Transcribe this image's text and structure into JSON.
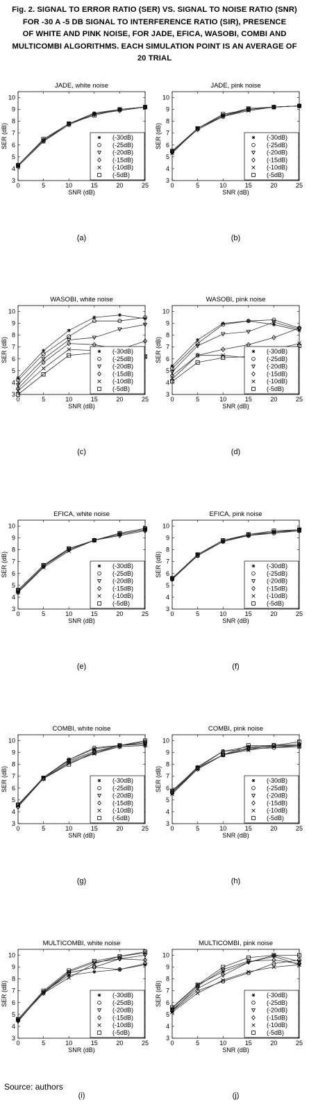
{
  "caption": {
    "lines": [
      "Fig. 2. SIGNAL TO ERROR RATIO (SER) VS.  SIGNAL TO NOISE RATIO (SNR)",
      "FOR -30 A -5 DB SIGNAL TO INTERFERENCE RATIO (SIR), PRESENCE",
      "OF WHITE AND PINK NOISE, FOR JADE, EFICA, WASOBI, COMBI AND",
      "MULTICOMBI ALGORITHMS. EACH SIMULATION POINT IS AN AVERAGE OF",
      "20 TRIAL"
    ]
  },
  "source": "Source: authors",
  "chart_data": [
    {
      "type": "line",
      "letter": "(a)",
      "title": "JADE, white noise",
      "xlabel": "SNR (dB)",
      "ylabel": "SER (dB)",
      "x": [
        0,
        5,
        10,
        15,
        20,
        25
      ],
      "xlim": [
        0,
        25
      ],
      "ylim": [
        3,
        10.5
      ],
      "xticks": [
        "0",
        "5",
        "10",
        "15",
        "20",
        "25"
      ],
      "yticks": [
        "3",
        "4",
        "5",
        "6",
        "7",
        "8",
        "9",
        "10"
      ],
      "series": [
        {
          "name": "(-30dB)",
          "marker": "star",
          "values": [
            4.3,
            6.4,
            7.8,
            8.7,
            9.0,
            9.2
          ]
        },
        {
          "name": "(-25dB)",
          "marker": "circle",
          "values": [
            4.2,
            6.3,
            7.7,
            8.6,
            9.0,
            9.2
          ]
        },
        {
          "name": "(-20dB)",
          "marker": "triangle",
          "values": [
            4.3,
            6.4,
            7.8,
            8.6,
            9.0,
            9.2
          ]
        },
        {
          "name": "(-15dB)",
          "marker": "diamond",
          "values": [
            4.3,
            6.4,
            7.8,
            8.6,
            8.9,
            9.2
          ]
        },
        {
          "name": "(-10dB)",
          "marker": "x",
          "values": [
            4.2,
            6.3,
            7.8,
            8.6,
            9.0,
            9.2
          ]
        },
        {
          "name": "(-5dB)",
          "marker": "square",
          "values": [
            4.3,
            6.5,
            7.8,
            8.5,
            9.0,
            9.2
          ]
        }
      ],
      "grid": false,
      "legend": "bottom-right"
    },
    {
      "type": "line",
      "letter": "(b)",
      "title": "JADE,  pink noise",
      "xlabel": "SNR (dB)",
      "ylabel": "SER (dB)",
      "x": [
        0,
        5,
        10,
        15,
        20,
        25
      ],
      "xlim": [
        0,
        25
      ],
      "ylim": [
        3,
        10.5
      ],
      "xticks": [
        "0",
        "5",
        "10",
        "15",
        "20",
        "25"
      ],
      "yticks": [
        "3",
        "4",
        "5",
        "6",
        "7",
        "8",
        "9",
        "10"
      ],
      "series": [
        {
          "name": "(-30dB)",
          "marker": "star",
          "values": [
            5.4,
            7.4,
            8.5,
            9.0,
            9.2,
            9.3
          ]
        },
        {
          "name": "(-25dB)",
          "marker": "circle",
          "values": [
            5.4,
            7.4,
            8.5,
            9.0,
            9.2,
            9.3
          ]
        },
        {
          "name": "(-20dB)",
          "marker": "triangle",
          "values": [
            5.5,
            7.4,
            8.5,
            9.1,
            9.2,
            9.3
          ]
        },
        {
          "name": "(-15dB)",
          "marker": "diamond",
          "values": [
            5.4,
            7.3,
            8.4,
            9.0,
            9.2,
            9.3
          ]
        },
        {
          "name": "(-10dB)",
          "marker": "x",
          "values": [
            5.3,
            7.4,
            8.4,
            8.9,
            9.2,
            9.3
          ]
        },
        {
          "name": "(-5dB)",
          "marker": "square",
          "values": [
            5.5,
            7.4,
            8.6,
            9.0,
            9.2,
            9.3
          ]
        }
      ],
      "grid": false,
      "legend": "bottom-right"
    },
    {
      "type": "line",
      "letter": "(c)",
      "title": "WASOBI, white noise",
      "xlabel": "SNR (dB)",
      "ylabel": "SER (dB)",
      "x": [
        0,
        5,
        10,
        15,
        20,
        25
      ],
      "xlim": [
        0,
        25
      ],
      "ylim": [
        3,
        10.5
      ],
      "xticks": [
        "0",
        "5",
        "10",
        "15",
        "20",
        "25"
      ],
      "yticks": [
        "3",
        "4",
        "5",
        "6",
        "7",
        "8",
        "9",
        "10"
      ],
      "series": [
        {
          "name": "(-30dB)",
          "marker": "star",
          "values": [
            4.4,
            6.7,
            8.4,
            9.5,
            9.7,
            9.4
          ]
        },
        {
          "name": "(-25dB)",
          "marker": "circle",
          "values": [
            4.2,
            6.4,
            7.9,
            9.2,
            9.2,
            9.5
          ]
        },
        {
          "name": "(-20dB)",
          "marker": "triangle",
          "values": [
            3.8,
            6.0,
            7.6,
            7.8,
            8.5,
            8.9
          ]
        },
        {
          "name": "(-15dB)",
          "marker": "diamond",
          "values": [
            3.5,
            5.7,
            7.3,
            7.2,
            6.8,
            7.5
          ]
        },
        {
          "name": "(-10dB)",
          "marker": "x",
          "values": [
            3.3,
            5.2,
            6.8,
            6.7,
            6.6,
            6.2
          ]
        },
        {
          "name": "(-5dB)",
          "marker": "square",
          "values": [
            3.0,
            4.7,
            6.3,
            6.5,
            6.3,
            6.2
          ]
        }
      ],
      "grid": false,
      "legend": "bottom-right"
    },
    {
      "type": "line",
      "letter": "(d)",
      "title": "WASOBI,  pink noise",
      "xlabel": "SNR (dB)",
      "ylabel": "SER (dB)",
      "x": [
        0,
        5,
        10,
        15,
        20,
        25
      ],
      "xlim": [
        0,
        25
      ],
      "ylim": [
        3,
        10.5
      ],
      "xticks": [
        "0",
        "5",
        "10",
        "15",
        "20",
        "25"
      ],
      "yticks": [
        "3",
        "4",
        "5",
        "6",
        "7",
        "8",
        "9",
        "10"
      ],
      "series": [
        {
          "name": "(-30dB)",
          "marker": "star",
          "values": [
            5.4,
            7.6,
            9.0,
            9.2,
            8.9,
            8.4
          ]
        },
        {
          "name": "(-25dB)",
          "marker": "circle",
          "values": [
            5.2,
            7.3,
            8.9,
            9.2,
            9.3,
            8.6
          ]
        },
        {
          "name": "(-20dB)",
          "marker": "triangle",
          "values": [
            4.9,
            7.1,
            8.1,
            8.3,
            9.1,
            8.5
          ]
        },
        {
          "name": "(-15dB)",
          "marker": "diamond",
          "values": [
            4.6,
            6.3,
            6.8,
            7.2,
            7.8,
            8.6
          ]
        },
        {
          "name": "(-10dB)",
          "marker": "x",
          "values": [
            4.3,
            6.3,
            6.3,
            6.1,
            6.8,
            7.3
          ]
        },
        {
          "name": "(-5dB)",
          "marker": "square",
          "values": [
            4.1,
            5.7,
            6.1,
            6.2,
            6.6,
            7.1
          ]
        }
      ],
      "grid": false,
      "legend": "bottom-right"
    },
    {
      "type": "line",
      "letter": "(e)",
      "title": "EFICA, white noise",
      "xlabel": "SNR (dB)",
      "ylabel": "SER (dB)",
      "x": [
        0,
        5,
        10,
        15,
        20,
        25
      ],
      "xlim": [
        0,
        25
      ],
      "ylim": [
        3,
        10.5
      ],
      "xticks": [
        "0",
        "5",
        "10",
        "15",
        "20",
        "25"
      ],
      "yticks": [
        "3",
        "4",
        "5",
        "6",
        "7",
        "8",
        "9",
        "10"
      ],
      "series": [
        {
          "name": "(-30dB)",
          "marker": "star",
          "values": [
            4.4,
            6.6,
            8.0,
            8.8,
            9.4,
            9.8
          ]
        },
        {
          "name": "(-25dB)",
          "marker": "circle",
          "values": [
            4.5,
            6.6,
            8.1,
            8.8,
            9.3,
            9.7
          ]
        },
        {
          "name": "(-20dB)",
          "marker": "triangle",
          "values": [
            4.6,
            6.7,
            8.1,
            8.8,
            9.3,
            9.7
          ]
        },
        {
          "name": "(-15dB)",
          "marker": "diamond",
          "values": [
            4.4,
            6.6,
            8.0,
            8.8,
            9.2,
            9.6
          ]
        },
        {
          "name": "(-10dB)",
          "marker": "x",
          "values": [
            4.4,
            6.5,
            7.9,
            8.8,
            9.3,
            9.7
          ]
        },
        {
          "name": "(-5dB)",
          "marker": "square",
          "values": [
            4.6,
            6.7,
            8.1,
            8.8,
            9.4,
            9.8
          ]
        }
      ],
      "grid": false,
      "legend": "bottom-right"
    },
    {
      "type": "line",
      "letter": "(f)",
      "title": "EFICA,  pink noise",
      "xlabel": "SNR (dB)",
      "ylabel": "SER (dB)",
      "x": [
        0,
        5,
        10,
        15,
        20,
        25
      ],
      "xlim": [
        0,
        25
      ],
      "ylim": [
        3,
        10.5
      ],
      "xticks": [
        "0",
        "5",
        "10",
        "15",
        "20",
        "25"
      ],
      "yticks": [
        "3",
        "4",
        "5",
        "6",
        "7",
        "8",
        "9",
        "10"
      ],
      "series": [
        {
          "name": "(-30dB)",
          "marker": "star",
          "values": [
            5.6,
            7.6,
            8.8,
            9.2,
            9.5,
            9.7
          ]
        },
        {
          "name": "(-25dB)",
          "marker": "circle",
          "values": [
            5.5,
            7.5,
            8.7,
            9.2,
            9.4,
            9.6
          ]
        },
        {
          "name": "(-20dB)",
          "marker": "triangle",
          "values": [
            5.5,
            7.6,
            8.7,
            9.3,
            9.5,
            9.7
          ]
        },
        {
          "name": "(-15dB)",
          "marker": "diamond",
          "values": [
            5.6,
            7.5,
            8.7,
            9.2,
            9.5,
            9.6
          ]
        },
        {
          "name": "(-10dB)",
          "marker": "x",
          "values": [
            5.6,
            7.5,
            8.7,
            9.2,
            9.5,
            9.6
          ]
        },
        {
          "name": "(-5dB)",
          "marker": "square",
          "values": [
            5.6,
            7.6,
            8.8,
            9.3,
            9.6,
            9.7
          ]
        }
      ],
      "grid": false,
      "legend": "bottom-right"
    },
    {
      "type": "line",
      "letter": "(g)",
      "title": "COMBI, white noise",
      "xlabel": "SNR (dB)",
      "ylabel": "SER (dB)",
      "x": [
        0,
        5,
        10,
        15,
        20,
        25
      ],
      "xlim": [
        0,
        25
      ],
      "ylim": [
        3,
        10.5
      ],
      "xticks": [
        "0",
        "5",
        "10",
        "15",
        "20",
        "25"
      ],
      "yticks": [
        "3",
        "4",
        "5",
        "6",
        "7",
        "8",
        "9",
        "10"
      ],
      "series": [
        {
          "name": "(-30dB)",
          "marker": "star",
          "values": [
            4.5,
            6.9,
            8.4,
            9.3,
            9.6,
            9.7
          ]
        },
        {
          "name": "(-25dB)",
          "marker": "circle",
          "values": [
            4.6,
            6.8,
            8.4,
            9.4,
            9.6,
            9.8
          ]
        },
        {
          "name": "(-20dB)",
          "marker": "triangle",
          "values": [
            4.6,
            6.9,
            8.3,
            9.1,
            9.6,
            9.9
          ]
        },
        {
          "name": "(-15dB)",
          "marker": "diamond",
          "values": [
            4.4,
            6.8,
            8.2,
            9.0,
            9.5,
            9.6
          ]
        },
        {
          "name": "(-10dB)",
          "marker": "x",
          "values": [
            4.5,
            6.8,
            8.1,
            8.9,
            9.5,
            9.6
          ]
        },
        {
          "name": "(-5dB)",
          "marker": "square",
          "values": [
            4.6,
            6.8,
            8.0,
            9.0,
            9.6,
            10.0
          ]
        }
      ],
      "grid": false,
      "legend": "bottom-right"
    },
    {
      "type": "line",
      "letter": "(h)",
      "title": "COMBI,  pink noise",
      "xlabel": "SNR (dB)",
      "ylabel": "SER (dB)",
      "x": [
        0,
        5,
        10,
        15,
        20,
        25
      ],
      "xlim": [
        0,
        25
      ],
      "ylim": [
        3,
        10.5
      ],
      "xticks": [
        "0",
        "5",
        "10",
        "15",
        "20",
        "25"
      ],
      "yticks": [
        "3",
        "4",
        "5",
        "6",
        "7",
        "8",
        "9",
        "10"
      ],
      "series": [
        {
          "name": "(-30dB)",
          "marker": "star",
          "values": [
            5.7,
            7.8,
            9.1,
            9.5,
            9.5,
            9.6
          ]
        },
        {
          "name": "(-25dB)",
          "marker": "circle",
          "values": [
            5.6,
            7.7,
            9.1,
            9.3,
            9.4,
            9.5
          ]
        },
        {
          "name": "(-20dB)",
          "marker": "triangle",
          "values": [
            5.8,
            7.7,
            8.8,
            9.4,
            9.6,
            9.6
          ]
        },
        {
          "name": "(-15dB)",
          "marker": "diamond",
          "values": [
            5.6,
            7.6,
            8.8,
            9.3,
            9.6,
            9.7
          ]
        },
        {
          "name": "(-10dB)",
          "marker": "x",
          "values": [
            5.5,
            7.6,
            8.8,
            9.2,
            9.5,
            9.5
          ]
        },
        {
          "name": "(-5dB)",
          "marker": "square",
          "values": [
            5.7,
            7.7,
            8.8,
            9.6,
            9.6,
            9.9
          ]
        }
      ],
      "grid": false,
      "legend": "bottom-right"
    },
    {
      "type": "line",
      "letter": "(i)",
      "title": "MULTICOMBI, white noise",
      "xlabel": "SNR (dB)",
      "ylabel": "SER (dB)",
      "x": [
        0,
        5,
        10,
        15,
        20,
        25
      ],
      "xlim": [
        0,
        25
      ],
      "ylim": [
        3,
        10.5
      ],
      "xticks": [
        "0",
        "5",
        "10",
        "15",
        "20",
        "25"
      ],
      "yticks": [
        "3",
        "4",
        "5",
        "6",
        "7",
        "8",
        "9",
        "10"
      ],
      "series": [
        {
          "name": "(-30dB)",
          "marker": "star",
          "values": [
            4.6,
            6.9,
            8.3,
            8.6,
            8.8,
            9.2
          ]
        },
        {
          "name": "(-25dB)",
          "marker": "circle",
          "values": [
            4.6,
            6.9,
            8.5,
            9.0,
            8.8,
            9.3
          ]
        },
        {
          "name": "(-20dB)",
          "marker": "triangle",
          "values": [
            4.4,
            6.9,
            8.6,
            9.4,
            9.7,
            10.0
          ]
        },
        {
          "name": "(-15dB)",
          "marker": "diamond",
          "values": [
            4.5,
            6.8,
            8.5,
            9.0,
            9.7,
            9.6
          ]
        },
        {
          "name": "(-10dB)",
          "marker": "x",
          "values": [
            4.5,
            6.8,
            8.1,
            9.3,
            9.9,
            10.2
          ]
        },
        {
          "name": "(-5dB)",
          "marker": "square",
          "values": [
            4.6,
            7.0,
            8.7,
            9.5,
            9.9,
            10.3
          ]
        }
      ],
      "grid": false,
      "legend": "bottom-right"
    },
    {
      "type": "line",
      "letter": "(j)",
      "title": "MULTICOMBI,  pink noise",
      "xlabel": "SNR (dB)",
      "ylabel": "SER (dB)",
      "x": [
        0,
        5,
        10,
        15,
        20,
        25
      ],
      "xlim": [
        0,
        25
      ],
      "ylim": [
        3,
        10.5
      ],
      "xticks": [
        "0",
        "5",
        "10",
        "15",
        "20",
        "25"
      ],
      "yticks": [
        "3",
        "4",
        "5",
        "6",
        "7",
        "8",
        "9",
        "10"
      ],
      "series": [
        {
          "name": "(-30dB)",
          "marker": "star",
          "values": [
            5.5,
            7.5,
            8.6,
            9.4,
            10.0,
            9.5
          ]
        },
        {
          "name": "(-25dB)",
          "marker": "circle",
          "values": [
            5.3,
            7.0,
            7.8,
            8.5,
            9.3,
            9.6
          ]
        },
        {
          "name": "(-20dB)",
          "marker": "triangle",
          "values": [
            5.4,
            7.2,
            8.3,
            9.4,
            9.9,
            9.2
          ]
        },
        {
          "name": "(-15dB)",
          "marker": "diamond",
          "values": [
            5.3,
            7.4,
            8.8,
            9.5,
            9.6,
            9.3
          ]
        },
        {
          "name": "(-10dB)",
          "marker": "x",
          "values": [
            5.2,
            6.8,
            7.9,
            8.6,
            9.0,
            9.2
          ]
        },
        {
          "name": "(-5dB)",
          "marker": "square",
          "values": [
            5.6,
            7.5,
            9.0,
            9.8,
            10.0,
            10.0
          ]
        }
      ],
      "grid": false,
      "legend": "bottom-right"
    }
  ]
}
